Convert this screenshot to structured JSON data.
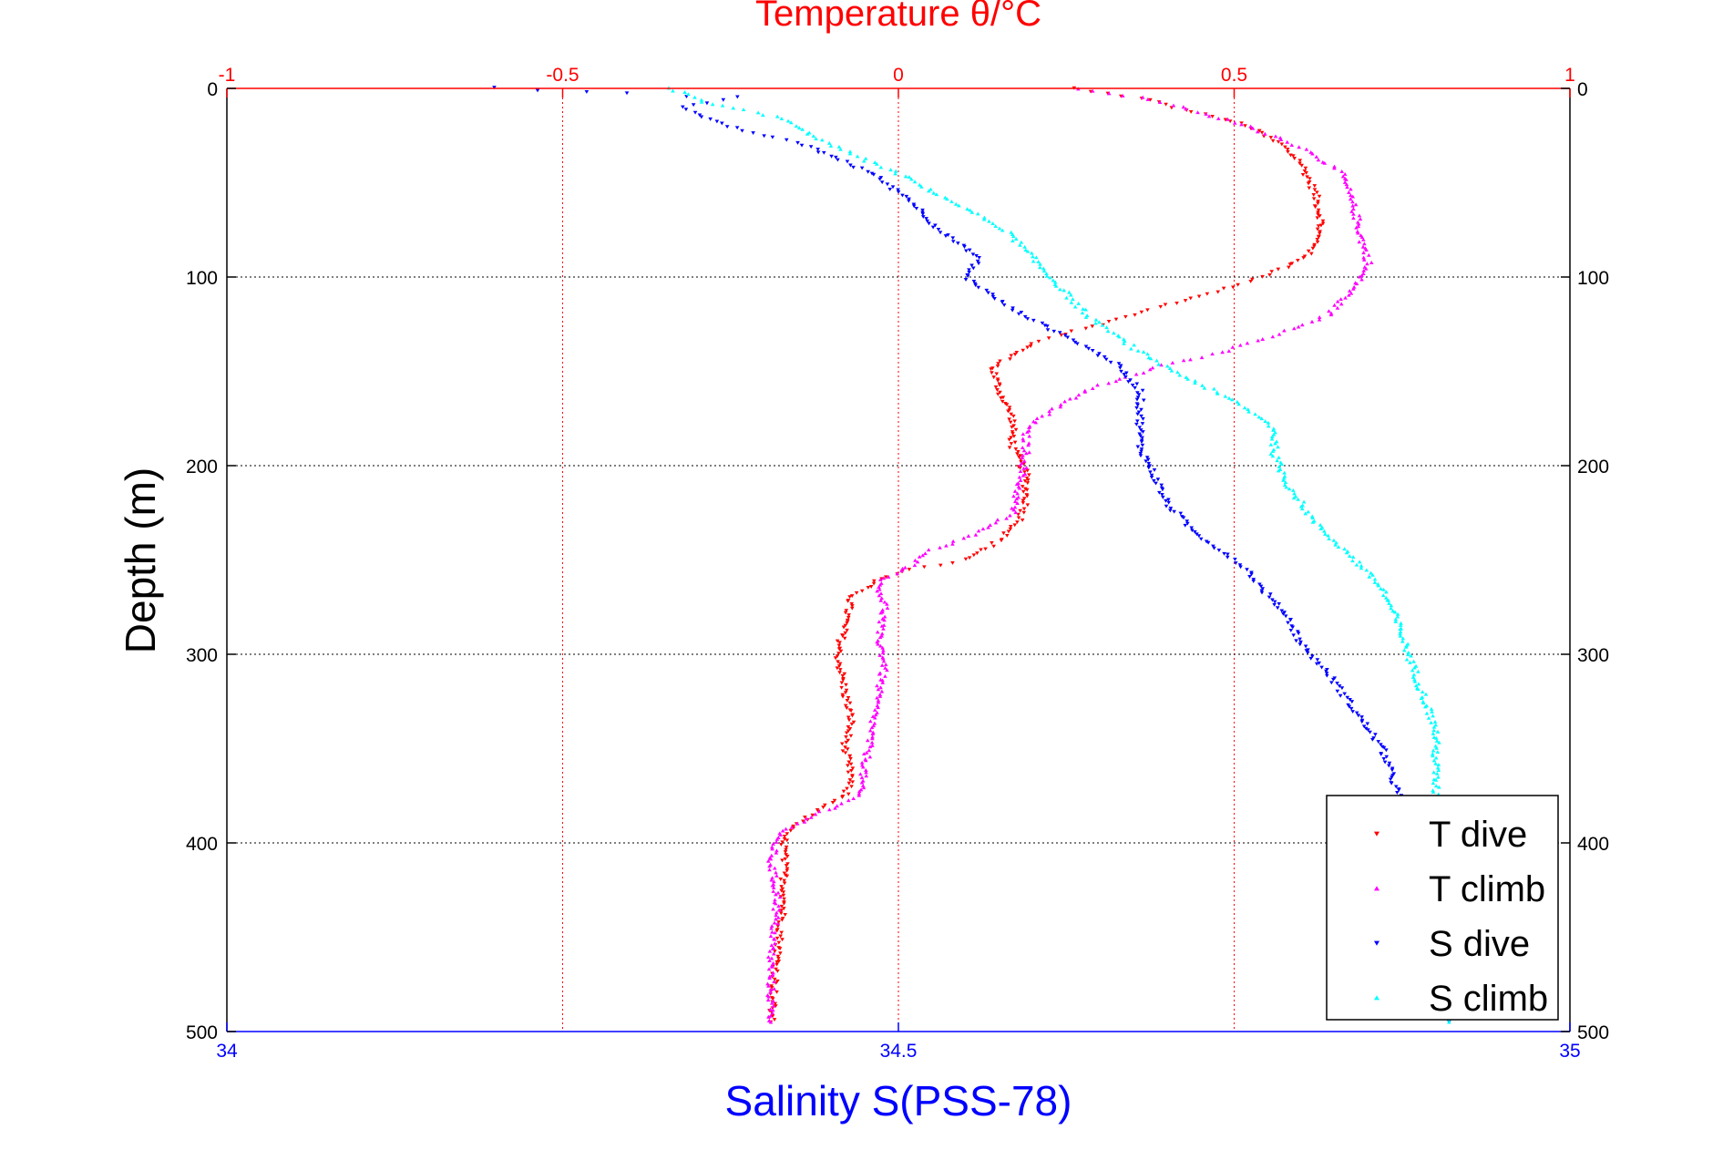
{
  "chart_data": {
    "type": "scatter",
    "title": "Temperature θ/°C",
    "top_axis": {
      "label": "Temperature θ/°C",
      "range": [
        -1,
        1
      ],
      "ticks": [
        -1,
        -0.5,
        0,
        0.5,
        1
      ],
      "tick_labels": [
        "-1",
        "-0.5",
        "0",
        "0.5",
        "1"
      ],
      "color": "#ff0000"
    },
    "bottom_axis": {
      "label": "Salinity S(PSS-78)",
      "range": [
        34,
        35
      ],
      "ticks": [
        34,
        34.5,
        35
      ],
      "tick_labels": [
        "34",
        "34.5",
        "35"
      ],
      "color": "#0000ff"
    },
    "y_axis": {
      "label": "Depth (m)",
      "range": [
        0,
        500
      ],
      "reversed": true,
      "ticks": [
        0,
        100,
        200,
        300,
        400,
        500
      ],
      "tick_labels": [
        "0",
        "100",
        "200",
        "300",
        "400",
        "500"
      ]
    },
    "grid": true,
    "legend_position": "bottom-right",
    "series": [
      {
        "name": "T dive",
        "axis": "temperature",
        "color": "#ff0000",
        "marker": "triangle-down",
        "points": [
          [
            0.26,
            0
          ],
          [
            0.36,
            5
          ],
          [
            0.41,
            10
          ],
          [
            0.47,
            15
          ],
          [
            0.52,
            20
          ],
          [
            0.57,
            30
          ],
          [
            0.6,
            40
          ],
          [
            0.62,
            55
          ],
          [
            0.63,
            70
          ],
          [
            0.62,
            85
          ],
          [
            0.58,
            95
          ],
          [
            0.5,
            105
          ],
          [
            0.4,
            115
          ],
          [
            0.3,
            125
          ],
          [
            0.2,
            135
          ],
          [
            0.14,
            148
          ],
          [
            0.15,
            160
          ],
          [
            0.17,
            175
          ],
          [
            0.17,
            190
          ],
          [
            0.19,
            205
          ],
          [
            0.19,
            220
          ],
          [
            0.18,
            230
          ],
          [
            0.15,
            240
          ],
          [
            0.1,
            250
          ],
          [
            0.02,
            255
          ],
          [
            -0.03,
            260
          ],
          [
            -0.07,
            270
          ],
          [
            -0.08,
            285
          ],
          [
            -0.09,
            300
          ],
          [
            -0.08,
            320
          ],
          [
            -0.07,
            335
          ],
          [
            -0.08,
            350
          ],
          [
            -0.07,
            365
          ],
          [
            -0.08,
            375
          ],
          [
            -0.13,
            385
          ],
          [
            -0.17,
            395
          ],
          [
            -0.17,
            405
          ],
          [
            -0.17,
            430
          ],
          [
            -0.18,
            460
          ],
          [
            -0.19,
            495
          ]
        ]
      },
      {
        "name": "T climb",
        "axis": "temperature",
        "color": "#ff00ff",
        "marker": "triangle-up",
        "points": [
          [
            0.27,
            0
          ],
          [
            0.36,
            5
          ],
          [
            0.42,
            10
          ],
          [
            0.5,
            18
          ],
          [
            0.56,
            25
          ],
          [
            0.62,
            35
          ],
          [
            0.66,
            45
          ],
          [
            0.67,
            55
          ],
          [
            0.68,
            65
          ],
          [
            0.69,
            80
          ],
          [
            0.7,
            92
          ],
          [
            0.68,
            105
          ],
          [
            0.64,
            120
          ],
          [
            0.57,
            130
          ],
          [
            0.48,
            140
          ],
          [
            0.38,
            148
          ],
          [
            0.28,
            160
          ],
          [
            0.23,
            170
          ],
          [
            0.19,
            180
          ],
          [
            0.19,
            195
          ],
          [
            0.18,
            210
          ],
          [
            0.17,
            225
          ],
          [
            0.12,
            235
          ],
          [
            0.05,
            245
          ],
          [
            0.01,
            255
          ],
          [
            -0.03,
            262
          ],
          [
            -0.02,
            275
          ],
          [
            -0.03,
            290
          ],
          [
            -0.02,
            305
          ],
          [
            -0.03,
            320
          ],
          [
            -0.04,
            340
          ],
          [
            -0.05,
            360
          ],
          [
            -0.06,
            375
          ],
          [
            -0.12,
            385
          ],
          [
            -0.18,
            395
          ],
          [
            -0.19,
            410
          ],
          [
            -0.18,
            430
          ],
          [
            -0.19,
            460
          ],
          [
            -0.19,
            495
          ]
        ]
      },
      {
        "name": "S dive",
        "axis": "salinity",
        "color": "#0000ff",
        "marker": "triangle-down",
        "points": [
          [
            34.2,
            0
          ],
          [
            34.3,
            3
          ],
          [
            34.38,
            5
          ],
          [
            34.34,
            10
          ],
          [
            34.37,
            20
          ],
          [
            34.43,
            30
          ],
          [
            34.48,
            45
          ],
          [
            34.51,
            60
          ],
          [
            34.53,
            75
          ],
          [
            34.56,
            90
          ],
          [
            34.55,
            100
          ],
          [
            34.58,
            115
          ],
          [
            34.62,
            130
          ],
          [
            34.66,
            145
          ],
          [
            34.68,
            160
          ],
          [
            34.68,
            175
          ],
          [
            34.68,
            190
          ],
          [
            34.69,
            205
          ],
          [
            34.7,
            220
          ],
          [
            34.72,
            235
          ],
          [
            34.74,
            245
          ],
          [
            34.76,
            255
          ],
          [
            34.77,
            265
          ],
          [
            34.79,
            280
          ],
          [
            34.8,
            295
          ],
          [
            34.82,
            310
          ],
          [
            34.84,
            330
          ],
          [
            34.86,
            350
          ],
          [
            34.87,
            370
          ],
          [
            34.88,
            390
          ],
          [
            34.89,
            410
          ],
          [
            34.9,
            430
          ],
          [
            34.9,
            460
          ],
          [
            34.91,
            495
          ]
        ]
      },
      {
        "name": "S climb",
        "axis": "salinity",
        "color": "#00ffff",
        "marker": "triangle-up",
        "points": [
          [
            34.33,
            0
          ],
          [
            34.36,
            8
          ],
          [
            34.41,
            15
          ],
          [
            34.45,
            30
          ],
          [
            34.5,
            45
          ],
          [
            34.54,
            60
          ],
          [
            34.58,
            75
          ],
          [
            34.6,
            90
          ],
          [
            34.62,
            105
          ],
          [
            34.64,
            120
          ],
          [
            34.68,
            140
          ],
          [
            34.72,
            155
          ],
          [
            34.76,
            170
          ],
          [
            34.78,
            180
          ],
          [
            34.78,
            195
          ],
          [
            34.79,
            210
          ],
          [
            34.81,
            230
          ],
          [
            34.84,
            250
          ],
          [
            34.86,
            265
          ],
          [
            34.87,
            280
          ],
          [
            34.88,
            300
          ],
          [
            34.89,
            320
          ],
          [
            34.9,
            340
          ],
          [
            34.9,
            360
          ],
          [
            34.9,
            380
          ],
          [
            34.91,
            400
          ],
          [
            34.91,
            420
          ],
          [
            34.91,
            450
          ],
          [
            34.91,
            480
          ],
          [
            34.91,
            495
          ]
        ]
      }
    ]
  }
}
